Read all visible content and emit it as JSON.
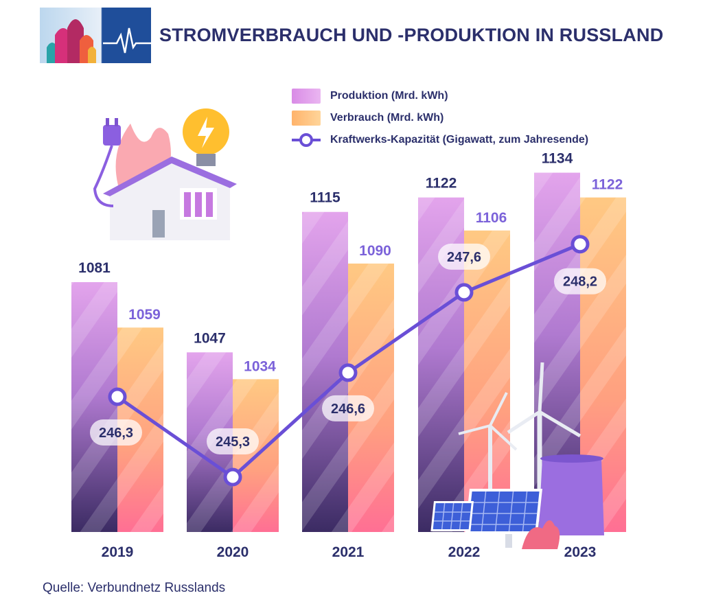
{
  "header": {
    "title": "STROMVERBRAUCH UND -PRODUKTION IN RUSSLAND"
  },
  "legend": {
    "production": "Produktion (Mrd. kWh)",
    "consumption": "Verbrauch (Mrd. kWh)",
    "capacity": "Kraftwerks-Kapazität (Gigawatt, zum Jahresende)"
  },
  "footer": {
    "source": "Quelle: Verbundnetz Russlands"
  },
  "colors": {
    "production_top": "#e3a4ec",
    "production_bottom": "#3b2b63",
    "consumption_top": "#ffc983",
    "consumption_bottom": "#ff6f94",
    "line": "#6a4fd6",
    "label_dark": "#2b2f6b",
    "label_purple": "#7b62d9"
  },
  "chart_data": {
    "type": "bar",
    "categories": [
      "2019",
      "2020",
      "2021",
      "2022",
      "2023"
    ],
    "series": [
      {
        "name": "Produktion (Mrd. kWh)",
        "values": [
          1081,
          1047,
          1115,
          1122,
          1134
        ]
      },
      {
        "name": "Verbrauch (Mrd. kWh)",
        "values": [
          1059,
          1034,
          1090,
          1106,
          1122
        ]
      }
    ],
    "line_series": {
      "name": "Kraftwerks-Kapazität (Gigawatt, zum Jahresende)",
      "values": [
        246.3,
        245.3,
        246.6,
        247.6,
        248.2
      ],
      "labels": [
        "246,3",
        "245,3",
        "246,6",
        "247,6",
        "248,2"
      ]
    },
    "title": "STROMVERBRAUCH UND -PRODUKTION IN RUSSLAND",
    "xlabel": "",
    "ylabel": "",
    "legend_position": "top-right"
  }
}
